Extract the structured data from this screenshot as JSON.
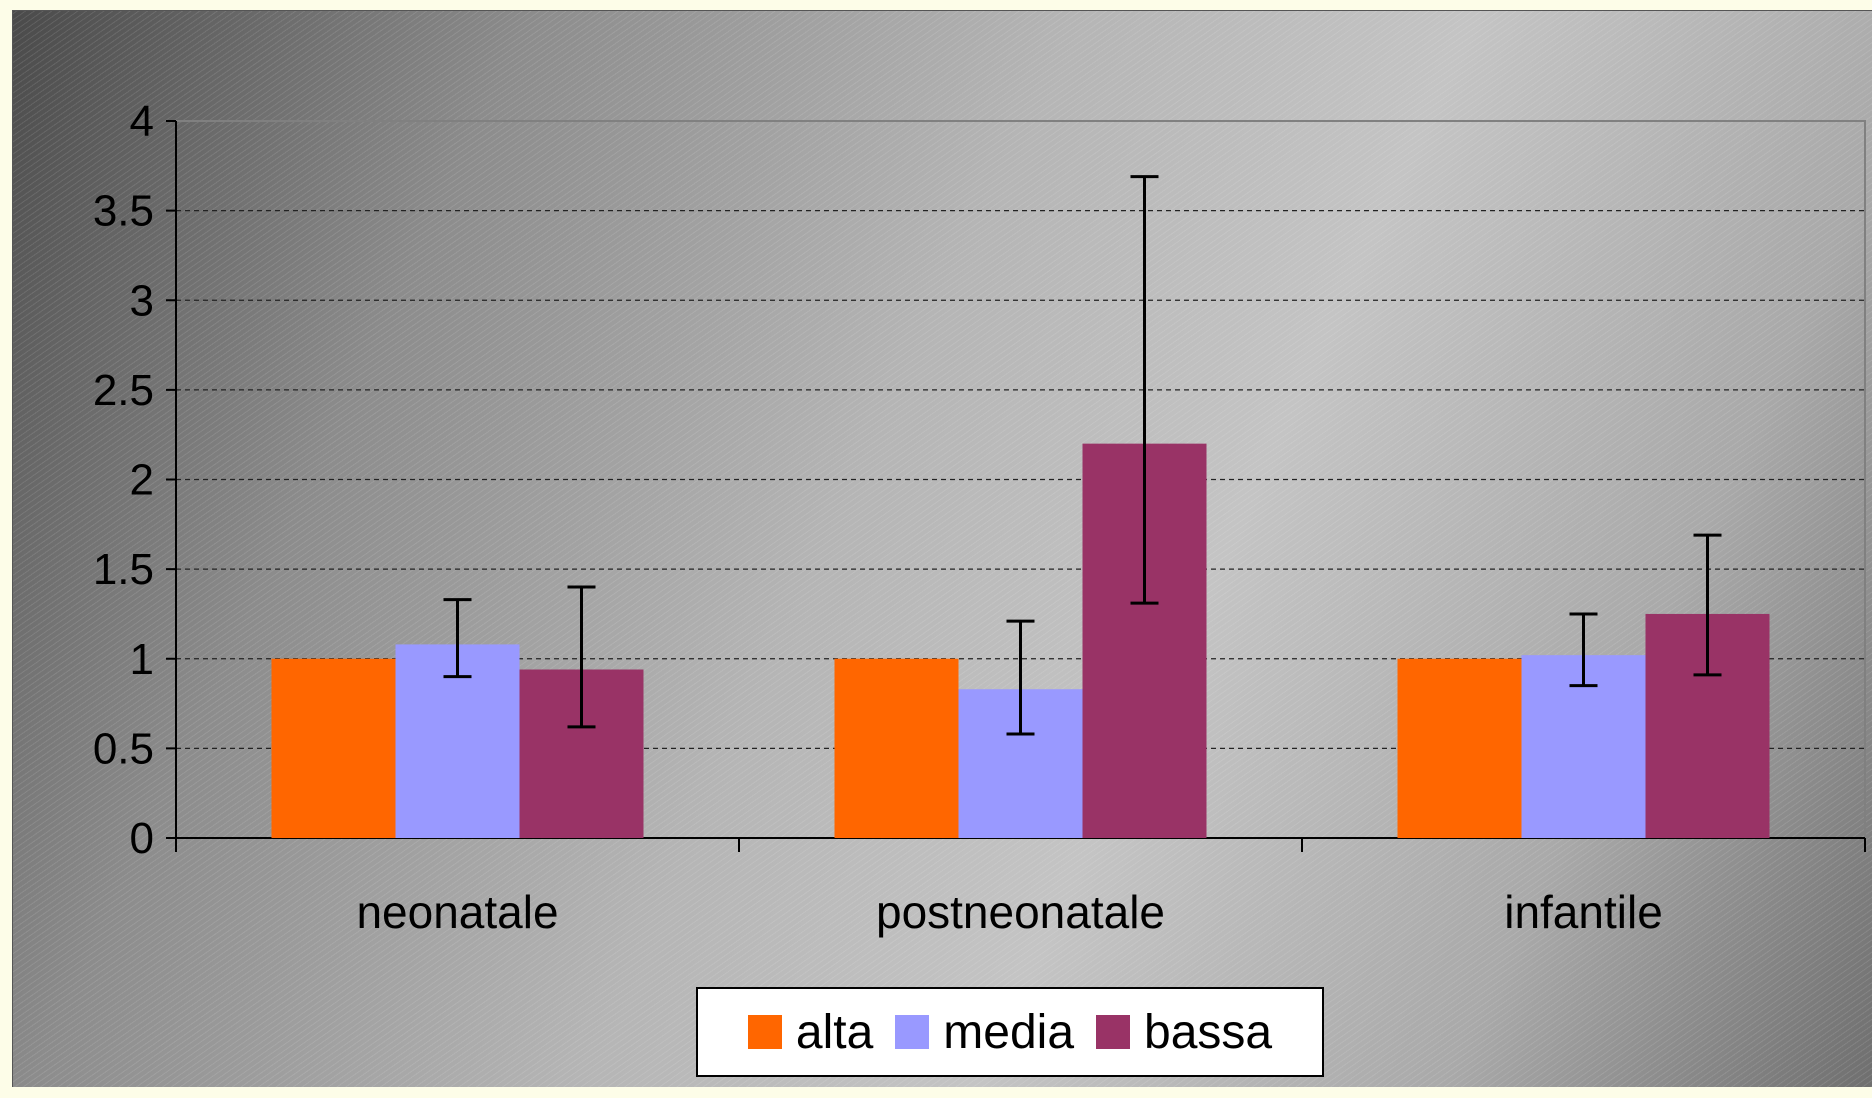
{
  "chart_data": {
    "type": "bar",
    "title": "",
    "xlabel": "",
    "ylabel": "",
    "ylim": [
      0,
      4
    ],
    "yticks": [
      "0",
      "0.5",
      "1",
      "1.5",
      "2",
      "2.5",
      "3",
      "3.5",
      "4"
    ],
    "ytick_values": [
      0,
      0.5,
      1,
      1.5,
      2,
      2.5,
      3,
      3.5,
      4
    ],
    "grid": "horizontal-dashed",
    "legend_position": "bottom-center",
    "categories": [
      "neonatale",
      "postneonatale",
      "infantile"
    ],
    "series": [
      {
        "name": "alta",
        "color": "#ff6600",
        "values": [
          1.0,
          1.0,
          1.0
        ],
        "error_low": [
          null,
          null,
          null
        ],
        "error_high": [
          null,
          null,
          null
        ]
      },
      {
        "name": "media",
        "color": "#9999ff",
        "values": [
          1.08,
          0.83,
          1.02
        ],
        "error_low": [
          0.9,
          0.58,
          0.85
        ],
        "error_high": [
          1.33,
          1.21,
          1.25
        ]
      },
      {
        "name": "bassa",
        "color": "#993366",
        "values": [
          0.94,
          2.2,
          1.25
        ],
        "error_low": [
          0.62,
          1.31,
          0.91
        ],
        "error_high": [
          1.4,
          3.69,
          1.69
        ]
      }
    ]
  }
}
